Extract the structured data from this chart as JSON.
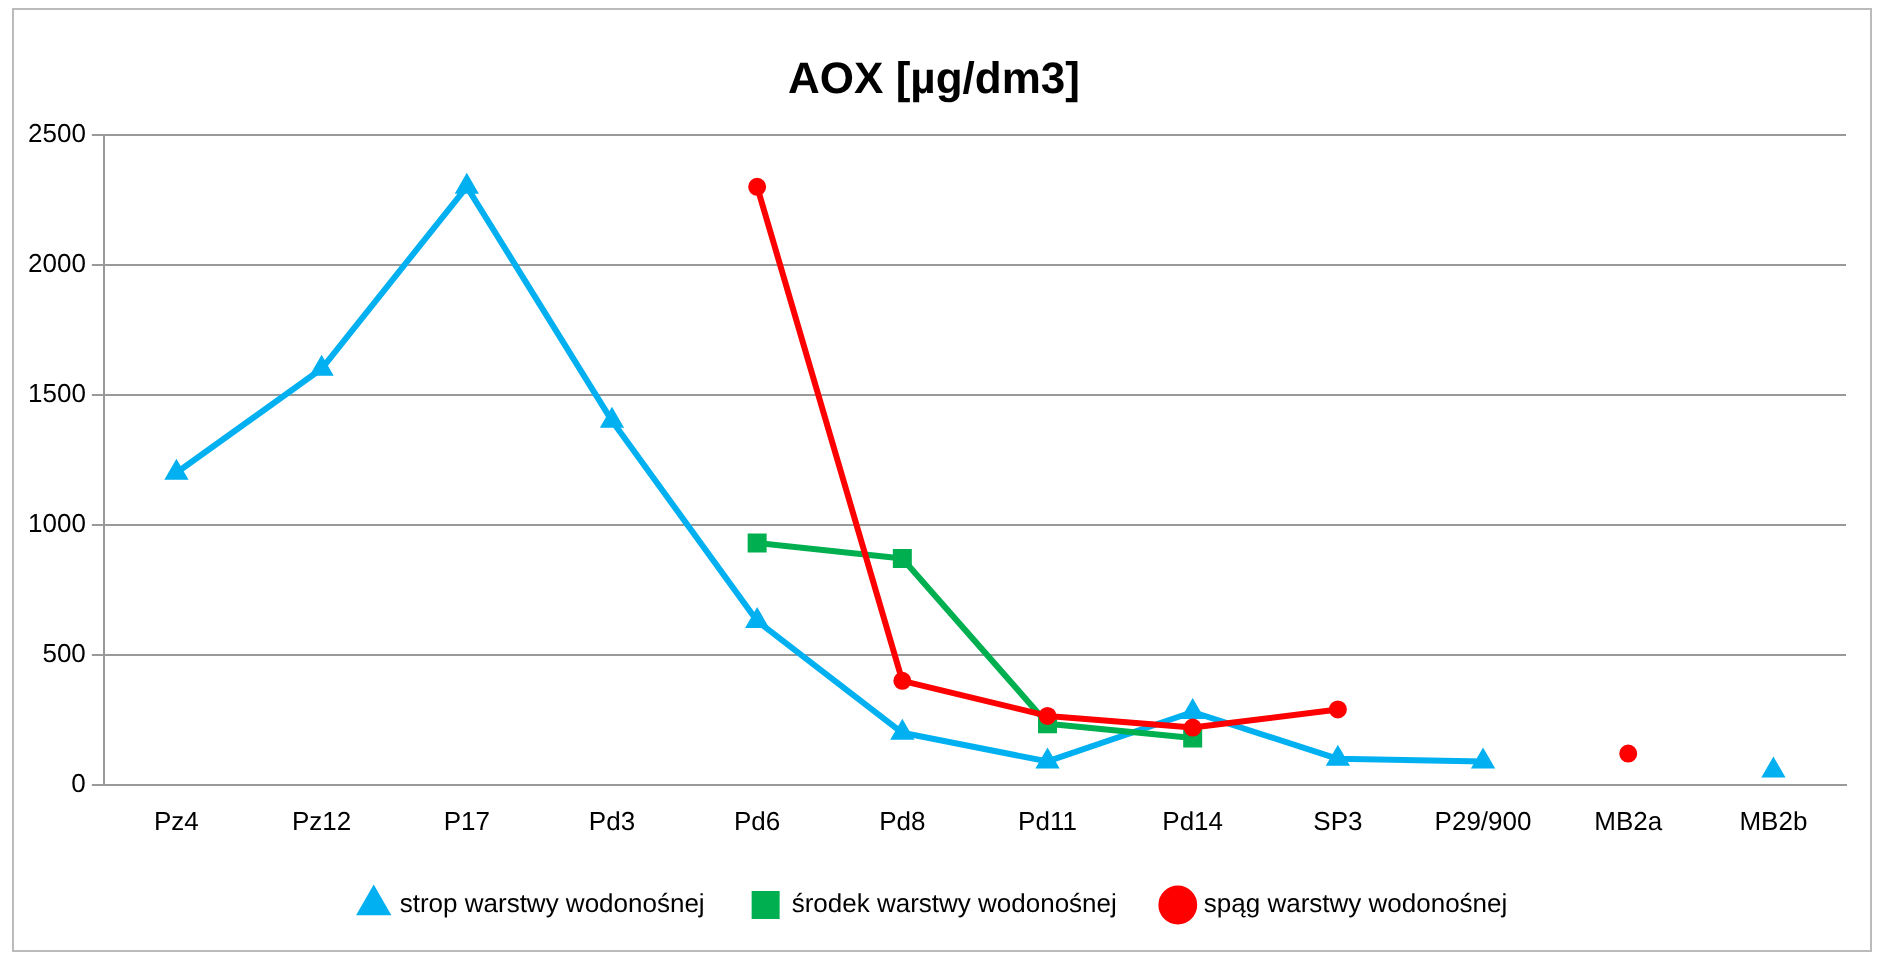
{
  "chart_data": {
    "type": "line",
    "title": "AOX [µg/dm3]",
    "categories": [
      "Pz4",
      "Pz12",
      "P17",
      "Pd3",
      "Pd6",
      "Pd8",
      "Pd11",
      "Pd14",
      "SP3",
      "P29/900",
      "MB2a",
      "MB2b"
    ],
    "series": [
      {
        "name": "strop warstwy wodonośnej",
        "color": "#00b0f0",
        "marker": "triangle",
        "values": [
          1200,
          1600,
          2300,
          1400,
          630,
          200,
          90,
          280,
          100,
          90,
          null,
          55
        ]
      },
      {
        "name": "środek warstwy wodonośnej",
        "color": "#00b050",
        "marker": "square",
        "values": [
          null,
          null,
          null,
          null,
          930,
          870,
          235,
          180,
          null,
          null,
          null,
          null
        ]
      },
      {
        "name": "spąg warstwy wodonośnej",
        "color": "#ff0000",
        "marker": "circle",
        "values": [
          null,
          null,
          null,
          null,
          2300,
          400,
          265,
          220,
          290,
          null,
          120,
          null
        ]
      }
    ],
    "ylim": [
      0,
      2500
    ],
    "yticks": [
      0,
      500,
      1000,
      1500,
      2000,
      2500
    ],
    "grid": "y",
    "legend": "bottom"
  }
}
